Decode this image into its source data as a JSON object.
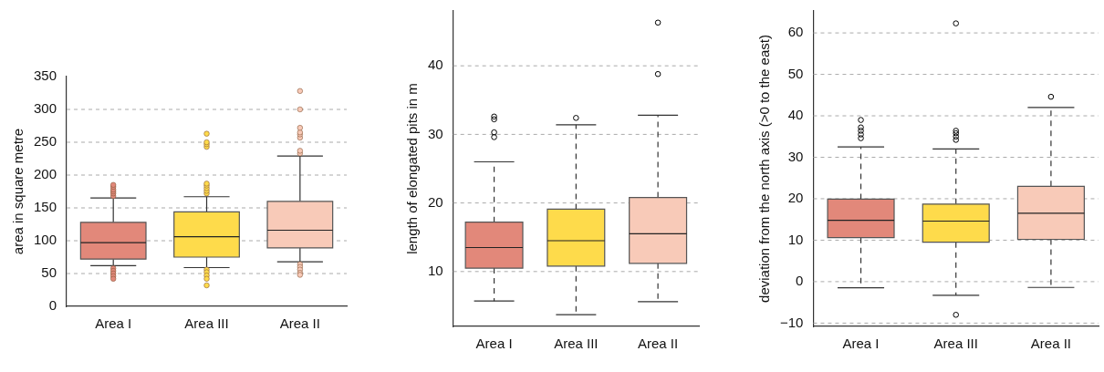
{
  "chart_data": [
    {
      "type": "box",
      "ylabel": "area in square metre",
      "categories": [
        "Area I",
        "Area III",
        "Area II"
      ],
      "colors": [
        "#e2887a",
        "#fedb4b",
        "#f8cab8"
      ],
      "ylim": [
        0,
        350
      ],
      "yticks": [
        0,
        50,
        100,
        150,
        200,
        250,
        300,
        350
      ],
      "grid": "y",
      "line_style": "solid",
      "marker": "circle",
      "boxes": [
        {
          "low": 62,
          "q1": 72,
          "median": 97,
          "q3": 128,
          "high": 165,
          "outliers": [
            168,
            172,
            175,
            178,
            182,
            185,
            58,
            54,
            50,
            46,
            42
          ]
        },
        {
          "low": 59,
          "q1": 75,
          "median": 106,
          "q3": 144,
          "high": 167,
          "outliers": [
            172,
            176,
            180,
            184,
            187,
            243,
            247,
            250,
            263,
            56,
            52,
            47,
            42,
            32
          ]
        },
        {
          "low": 68,
          "q1": 89,
          "median": 116,
          "q3": 160,
          "high": 229,
          "outliers": [
            233,
            237,
            257,
            262,
            265,
            272,
            300,
            328,
            64,
            60,
            56,
            51,
            48
          ]
        }
      ]
    },
    {
      "type": "box",
      "ylabel": "length of elongated pits in m",
      "categories": [
        "Area I",
        "Area III",
        "Area II"
      ],
      "colors": [
        "#e2887a",
        "#fedb4b",
        "#f8cab8"
      ],
      "ylim": [
        2,
        48
      ],
      "yticks": [
        10,
        20,
        30,
        40
      ],
      "grid": "y",
      "line_style": "dashed",
      "marker": "circle",
      "boxes": [
        {
          "low": 5.7,
          "q1": 10.5,
          "median": 13.5,
          "q3": 17.2,
          "high": 26,
          "outliers": [
            29.6,
            30.3,
            32.2,
            32.6
          ]
        },
        {
          "low": 3.7,
          "q1": 10.8,
          "median": 14.5,
          "q3": 19.1,
          "high": 31.4,
          "outliers": [
            32.4
          ]
        },
        {
          "low": 5.6,
          "q1": 11.2,
          "median": 15.5,
          "q3": 20.8,
          "high": 32.8,
          "outliers": [
            38.8,
            46.3
          ]
        }
      ]
    },
    {
      "type": "box",
      "ylabel": "deviation from the north axis (>0 to the east)",
      "categories": [
        "Area I",
        "Area III",
        "Area II"
      ],
      "colors": [
        "#e2887a",
        "#fedb4b",
        "#f8cab8"
      ],
      "ylim": [
        -10.8,
        65.3
      ],
      "yticks": [
        {
          "value": -10,
          "label": "−10"
        },
        0,
        10,
        20,
        30,
        40,
        50,
        60
      ],
      "grid": "y",
      "line_style": "dashed",
      "marker": "circle",
      "boxes": [
        {
          "low": -1.5,
          "q1": 10.6,
          "median": 14.8,
          "q3": 19.9,
          "high": 32.5,
          "outliers": [
            34.6,
            35.5,
            36.4,
            37.2,
            39
          ]
        },
        {
          "low": -3.3,
          "q1": 9.5,
          "median": 14.6,
          "q3": 18.7,
          "high": 32,
          "outliers": [
            34.2,
            35,
            35.8,
            36.4,
            62.3,
            -8
          ]
        },
        {
          "low": -1.4,
          "q1": 10.2,
          "median": 16.5,
          "q3": 23,
          "high": 42,
          "outliers": [
            44.6
          ]
        }
      ]
    }
  ]
}
